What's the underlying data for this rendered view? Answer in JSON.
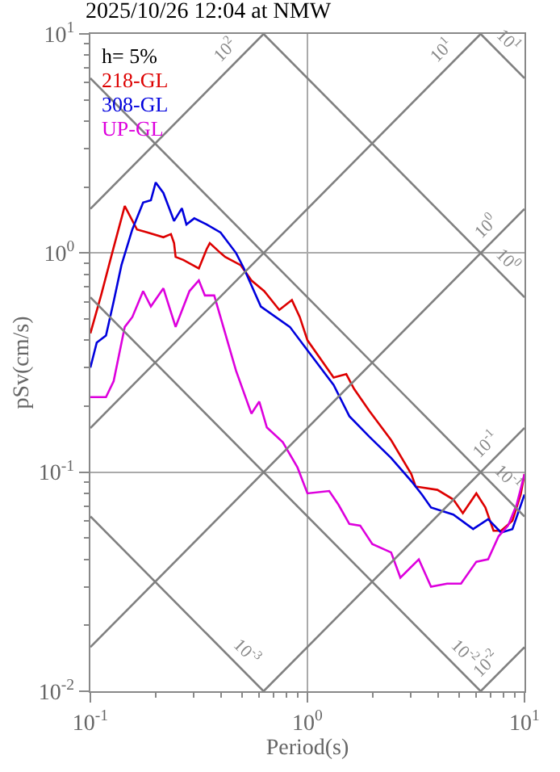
{
  "chart_data": {
    "type": "line",
    "title": "2025/10/26 12:04 at NMW",
    "xlabel": "Period(s)",
    "ylabel": "pSv(cm/s)",
    "legend_title": "h= 5%",
    "legend": "top left",
    "log": "xy",
    "grid": true,
    "xlim": [
      0.1,
      10
    ],
    "ylim": [
      0.01,
      10
    ],
    "xticks": [
      {
        "value": 0.1,
        "label": "10$^{-1}$"
      },
      {
        "value": 1,
        "label": "10$^{0}$"
      },
      {
        "value": 10,
        "label": "10$^{1}$"
      }
    ],
    "yticks": [
      {
        "value": 0.01,
        "label": "10$^{-2}$"
      },
      {
        "value": 0.1,
        "label": "10$^{-1}$"
      },
      {
        "value": 1,
        "label": "10$^{0}$"
      },
      {
        "value": 10,
        "label": "10$^{1}$"
      }
    ],
    "series": [
      {
        "name": "218-GL",
        "color": "#dd0000",
        "x": [
          0.1,
          0.112,
          0.126,
          0.144,
          0.164,
          0.184,
          0.217,
          0.235,
          0.243,
          0.247,
          0.268,
          0.316,
          0.343,
          0.355,
          0.398,
          0.418,
          0.493,
          0.552,
          0.632,
          0.742,
          0.848,
          0.922,
          1.0,
          1.32,
          1.51,
          1.64,
          1.93,
          2.43,
          3.01,
          3.15,
          3.97,
          4.7,
          5.2,
          6.0,
          6.6,
          7.2,
          7.8,
          8.8,
          9.6,
          10
        ],
        "values": [
          0.43,
          0.64,
          1.0,
          1.64,
          1.28,
          1.24,
          1.18,
          1.22,
          1.11,
          0.96,
          0.93,
          0.85,
          1.04,
          1.11,
          1.0,
          0.96,
          0.88,
          0.75,
          0.67,
          0.55,
          0.61,
          0.51,
          0.4,
          0.27,
          0.28,
          0.24,
          0.19,
          0.14,
          0.098,
          0.086,
          0.083,
          0.075,
          0.065,
          0.08,
          0.069,
          0.054,
          0.054,
          0.06,
          0.079,
          0.098
        ]
      },
      {
        "name": "308-GL",
        "color": "#0000dd",
        "x": [
          0.1,
          0.107,
          0.118,
          0.128,
          0.139,
          0.156,
          0.175,
          0.19,
          0.2,
          0.217,
          0.243,
          0.264,
          0.277,
          0.301,
          0.343,
          0.398,
          0.469,
          0.51,
          0.61,
          0.83,
          1.0,
          1.32,
          1.56,
          1.93,
          2.43,
          3.01,
          3.37,
          3.71,
          4.7,
          5.8,
          6.8,
          7.8,
          8.8,
          10
        ],
        "values": [
          0.3,
          0.39,
          0.42,
          0.6,
          0.88,
          1.28,
          1.7,
          1.74,
          2.1,
          1.88,
          1.4,
          1.6,
          1.35,
          1.44,
          1.35,
          1.24,
          1.0,
          0.85,
          0.57,
          0.46,
          0.36,
          0.25,
          0.18,
          0.145,
          0.116,
          0.091,
          0.079,
          0.069,
          0.064,
          0.055,
          0.061,
          0.053,
          0.055,
          0.079
        ]
      },
      {
        "name": "UP-GL",
        "color": "#dd00dd",
        "x": [
          0.1,
          0.118,
          0.128,
          0.144,
          0.156,
          0.175,
          0.19,
          0.217,
          0.247,
          0.286,
          0.316,
          0.337,
          0.372,
          0.469,
          0.552,
          0.6,
          0.65,
          0.77,
          0.9,
          1.0,
          1.26,
          1.39,
          1.56,
          1.75,
          1.99,
          2.43,
          2.68,
          3.26,
          3.71,
          4.4,
          5.1,
          6.0,
          6.8,
          7.6,
          8.4,
          9.2,
          10
        ],
        "values": [
          0.22,
          0.22,
          0.26,
          0.46,
          0.51,
          0.67,
          0.57,
          0.69,
          0.46,
          0.67,
          0.75,
          0.64,
          0.64,
          0.29,
          0.185,
          0.21,
          0.16,
          0.137,
          0.105,
          0.08,
          0.082,
          0.071,
          0.058,
          0.057,
          0.047,
          0.043,
          0.033,
          0.04,
          0.03,
          0.031,
          0.031,
          0.039,
          0.04,
          0.051,
          0.057,
          0.071,
          0.098
        ]
      },
      {
        "name": "10$^{2}$",
        "color": "#808080",
        "x": [
          0.1,
          0.628
        ],
        "values": [
          1.59,
          10
        ]
      },
      {
        "name": "10$^{1}$",
        "color": "#808080",
        "x": [
          0.1,
          6.28
        ],
        "values": [
          0.159,
          10
        ]
      },
      {
        "name": "10$^{0}$",
        "color": "#808080",
        "x": [
          0.1,
          10
        ],
        "values": [
          0.0159,
          1.59
        ]
      },
      {
        "name": "10$^{-1}$",
        "color": "#808080",
        "x": [
          0.628,
          10
        ],
        "values": [
          0.01,
          0.159
        ]
      },
      {
        "name": "10$^{-2}$",
        "color": "#808080",
        "x": [
          6.28,
          10
        ],
        "values": [
          0.01,
          0.0159
        ]
      },
      {
        "name": "10$^{1}$",
        "color": "#808080",
        "x": [
          6.28,
          10
        ],
        "values": [
          10,
          6.28
        ]
      },
      {
        "name": "10$^{0}$",
        "color": "#808080",
        "x": [
          0.628,
          10
        ],
        "values": [
          10,
          0.628
        ]
      },
      {
        "name": "10$^{-1}$",
        "color": "#808080",
        "x": [
          0.1,
          10
        ],
        "values": [
          6.28,
          0.0628
        ]
      },
      {
        "name": "10$^{-2}$",
        "color": "#808080",
        "x": [
          0.1,
          6.28
        ],
        "values": [
          0.628,
          0.01
        ]
      },
      {
        "name": "10$^{-3}$",
        "color": "#808080",
        "x": [
          0.1,
          0.628
        ],
        "values": [
          0.0628,
          0.01
        ]
      }
    ]
  }
}
